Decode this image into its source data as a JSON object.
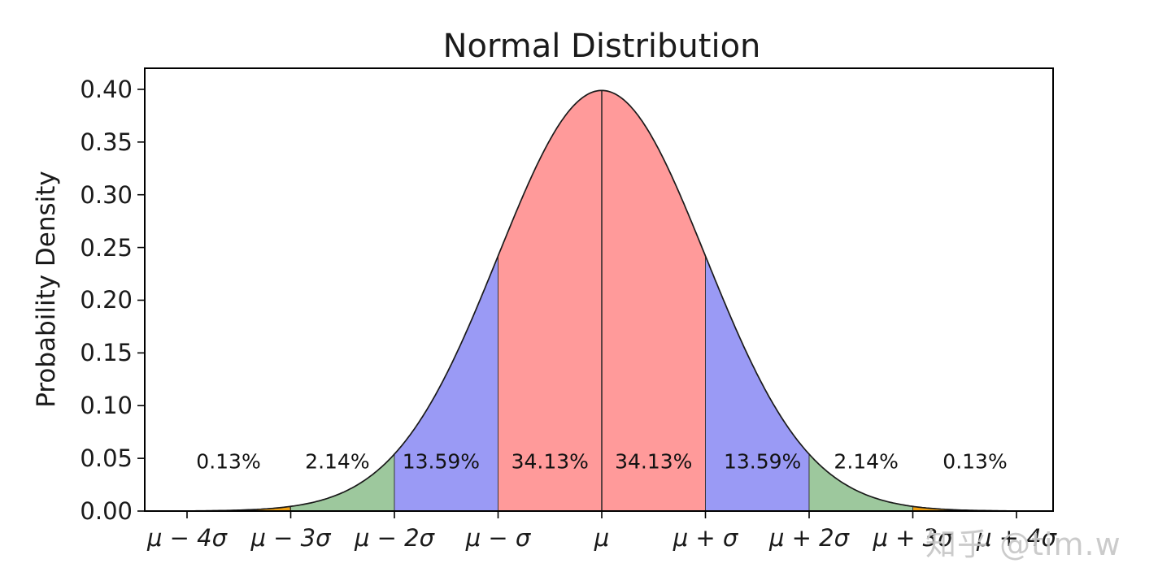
{
  "title": "Normal Distribution",
  "watermark": "知乎 @tim.w",
  "chart_data": {
    "type": "area",
    "title": "Normal Distribution",
    "ylabel": "Probability Density",
    "xlabel": "",
    "grid": false,
    "legend": null,
    "yticks": [
      "0.00",
      "0.05",
      "0.10",
      "0.15",
      "0.20",
      "0.25",
      "0.30",
      "0.35",
      "0.40"
    ],
    "ytick_values": [
      0.0,
      0.05,
      0.1,
      0.15,
      0.2,
      0.25,
      0.3,
      0.35,
      0.4
    ],
    "xticks": [
      "μ − 4σ",
      "μ − 3σ",
      "μ − 2σ",
      "μ − σ",
      "μ",
      "μ + σ",
      "μ + 2σ",
      "μ + 3σ",
      "μ + 4σ"
    ],
    "xtick_z": [
      -4,
      -3,
      -2,
      -1,
      0,
      1,
      2,
      3,
      4
    ],
    "ylim": [
      0,
      0.42
    ],
    "xlim_z": [
      -4.41,
      4.35
    ],
    "curve": {
      "distribution": "standard-normal-pdf",
      "peak_density": 0.3989,
      "mean_label": "μ",
      "sigma_label": "σ"
    },
    "bands": [
      {
        "z_from": -4.41,
        "z_to": -3,
        "color": "#f0a010",
        "percent": "0.13%",
        "label_z": -3.6
      },
      {
        "z_from": -3,
        "z_to": -2,
        "color": "#9dc89d",
        "percent": "2.14%",
        "label_z": -2.55
      },
      {
        "z_from": -2,
        "z_to": -1,
        "color": "#9a9af5",
        "percent": "13.59%",
        "label_z": -1.55
      },
      {
        "z_from": -1,
        "z_to": 0,
        "color": "#ff9a9a",
        "percent": "34.13%",
        "label_z": -0.5
      },
      {
        "z_from": 0,
        "z_to": 1,
        "color": "#ff9a9a",
        "percent": "34.13%",
        "label_z": 0.5
      },
      {
        "z_from": 1,
        "z_to": 2,
        "color": "#9a9af5",
        "percent": "13.59%",
        "label_z": 1.55
      },
      {
        "z_from": 2,
        "z_to": 3,
        "color": "#9dc89d",
        "percent": "2.14%",
        "label_z": 2.55
      },
      {
        "z_from": 3,
        "z_to": 4.35,
        "color": "#f0a010",
        "percent": "0.13%",
        "label_z": 3.6
      }
    ],
    "percent_label_y": 0.047,
    "colors": {
      "curve": "#1a1a1a",
      "mean_line": "#4a3838",
      "band_edge": "#2e2e2e",
      "axis": "#000000"
    }
  }
}
